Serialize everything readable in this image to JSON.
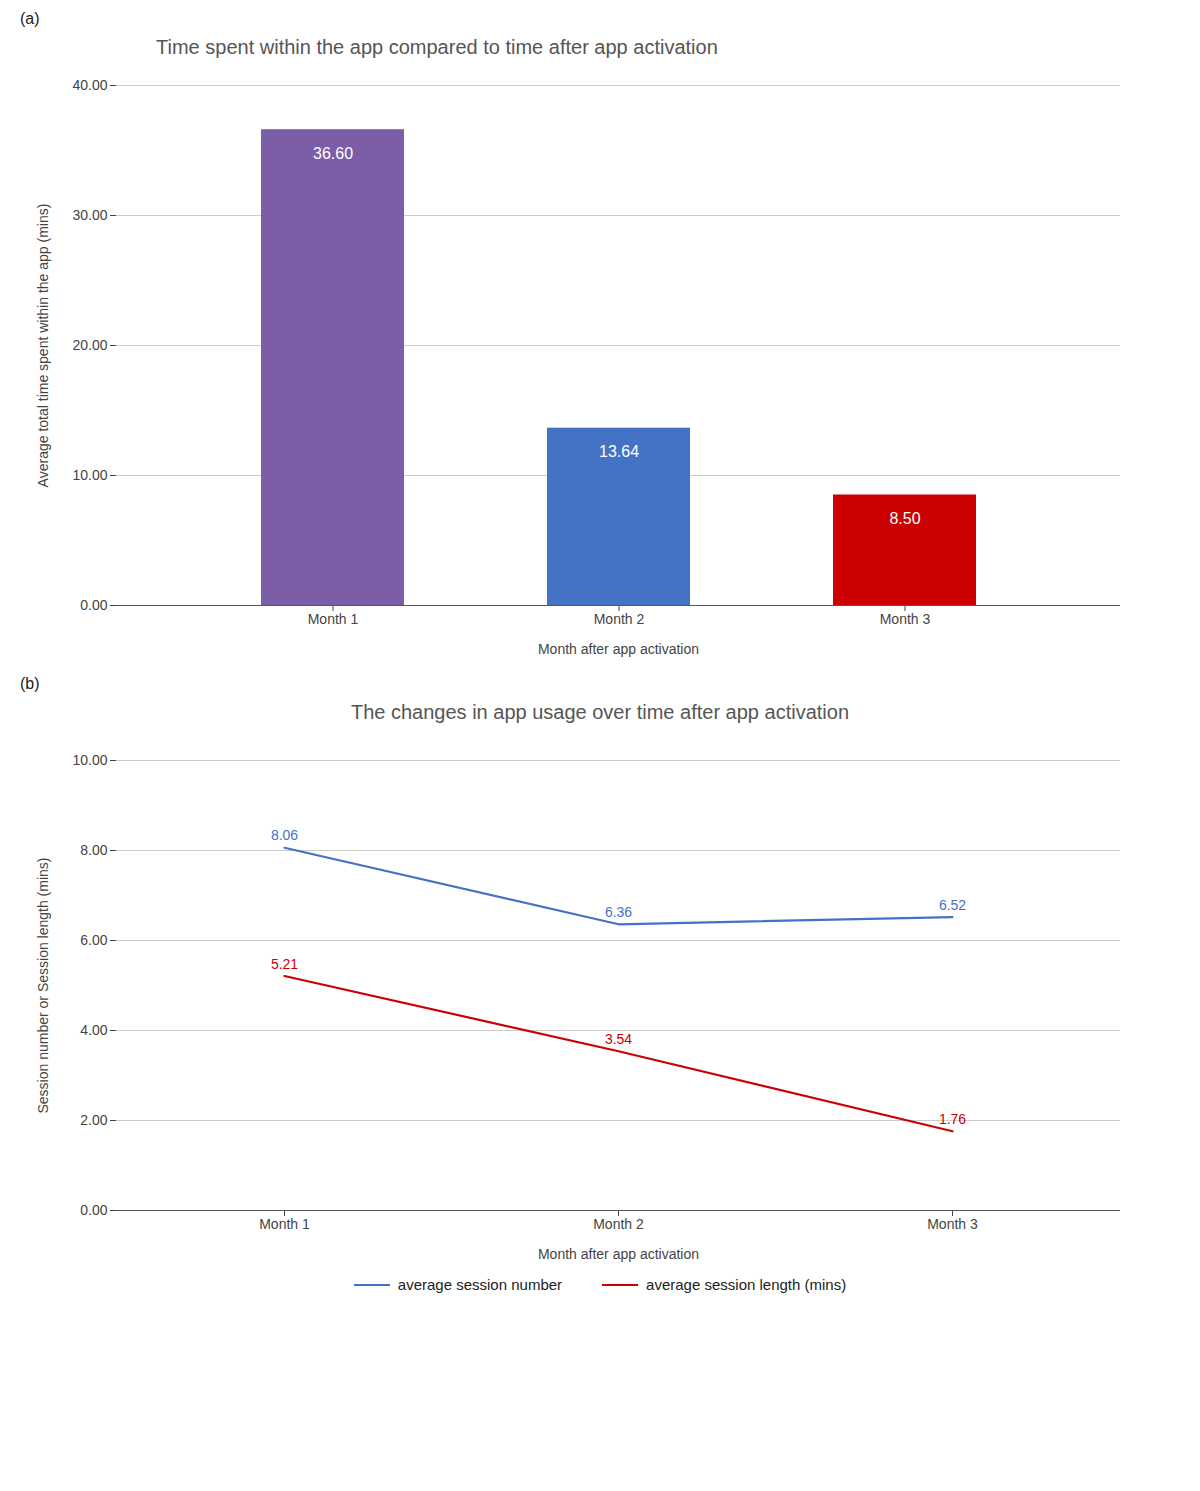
{
  "chart_data": [
    {
      "type": "bar",
      "title": "Time spent within the app compared to time after app activation",
      "annotations": [
        "(a)"
      ],
      "x_label": "Month after app activation",
      "y_label": "Average total time spent within the app (mins)",
      "categories": [
        "Month 1",
        "Month 2",
        "Month 3"
      ],
      "values": [
        36.6,
        13.64,
        8.5
      ],
      "value_labels": [
        "36.60",
        "13.64",
        "8.50"
      ],
      "colors": [
        "#7B5EA7",
        "#4472C4",
        "#CC0000"
      ],
      "ylim": [
        0,
        40
      ],
      "yticks": [
        {
          "value": 0,
          "label": "0.00"
        },
        {
          "value": 10,
          "label": "10.00"
        },
        {
          "value": 20,
          "label": "20.00"
        },
        {
          "value": 30,
          "label": "30.00"
        },
        {
          "value": 40,
          "label": "40.00"
        }
      ],
      "grid": true,
      "data_labels": true
    },
    {
      "type": "line",
      "title": "The changes in app usage over time after app activation",
      "annotations": [
        "(b)"
      ],
      "x_label": "Month after app activation",
      "y_label": "Session number or Session length (mins)",
      "categories": [
        "Month 1",
        "Month 2",
        "Month 3"
      ],
      "series": [
        {
          "name": "average session number",
          "color": "#4472C4",
          "values": [
            8.06,
            6.36,
            6.52
          ],
          "value_labels": [
            "8.06",
            "6.36",
            "6.52"
          ]
        },
        {
          "name": "average session length (mins)",
          "color": "#CC0000",
          "values": [
            5.21,
            3.54,
            1.76
          ],
          "value_labels": [
            "5.21",
            "3.54",
            "1.76"
          ]
        }
      ],
      "ylim": [
        0,
        10
      ],
      "yticks": [
        {
          "value": 0,
          "label": "0.00"
        },
        {
          "value": 2,
          "label": "2.00"
        },
        {
          "value": 4,
          "label": "4.00"
        },
        {
          "value": 6,
          "label": "6.00"
        },
        {
          "value": 8,
          "label": "8.00"
        },
        {
          "value": 10,
          "label": "10.00"
        }
      ],
      "grid": true,
      "data_labels": true,
      "legend": "bottom"
    }
  ]
}
